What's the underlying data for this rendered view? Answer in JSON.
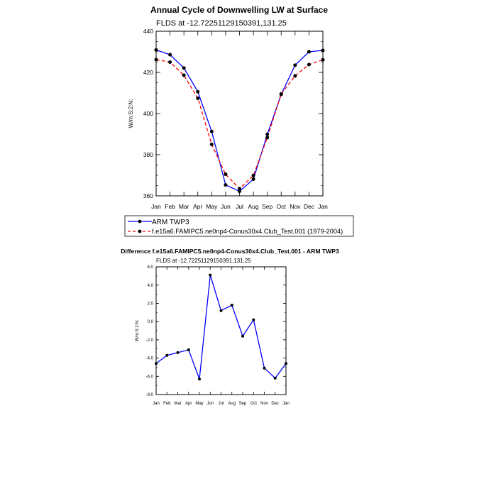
{
  "chart_data": [
    {
      "type": "line",
      "title": "Annual Cycle of Downwelling LW at Surface",
      "subtitle": "FLDS at -12.72251129150391,131.25",
      "ylabel": "W/m:S:2:N:",
      "xlabel": "",
      "categories": [
        "Jan",
        "Feb",
        "Mar",
        "Apr",
        "May",
        "Jun",
        "Jul",
        "Aug",
        "Sep",
        "Oct",
        "Nov",
        "Dec",
        "Jan"
      ],
      "ylim": [
        360,
        440
      ],
      "yticks": [
        "360",
        "380",
        "400",
        "420",
        "440"
      ],
      "grid": false,
      "legend_placement": "bottom",
      "series": [
        {
          "name": "ARM TWP3",
          "color": "#0000ff",
          "style": "solid",
          "values": [
            430.9,
            428.6,
            422.1,
            410.6,
            391.3,
            365.3,
            362.2,
            368.1,
            389.9,
            409.3,
            423.5,
            430.0,
            430.7
          ]
        },
        {
          "name": "f.e15a6.FAMIPC5.ne0np4-Conus30x4.Club_Test.001 (1979-2004)",
          "color": "#ff0000",
          "style": "dashed",
          "values": [
            426.2,
            425.0,
            418.6,
            407.4,
            385.0,
            370.5,
            363.5,
            369.9,
            388.3,
            409.5,
            418.3,
            423.8,
            426.1
          ]
        }
      ]
    },
    {
      "type": "line",
      "title": "Difference f.e15a6.FAMIPC5.ne0np4-Conus30x4.Club_Test.001 - ARM TWP3",
      "subtitle": "FLDS at -12.72251129150391,131.25",
      "ylabel": "W/m:S:2:N:",
      "xlabel": "",
      "categories": [
        "Jan",
        "Feb",
        "Mar",
        "Apr",
        "May",
        "Jun",
        "Jul",
        "Aug",
        "Sep",
        "Oct",
        "Nov",
        "Dec",
        "Jan"
      ],
      "ylim": [
        -8.0,
        6.0
      ],
      "yticks": [
        "-8.0",
        "-6.0",
        "-4.0",
        "-2.0",
        "0.0",
        "2.0",
        "4.0",
        "6.0"
      ],
      "grid": false,
      "series": [
        {
          "color": "#0000ff",
          "style": "solid",
          "values": [
            -4.6,
            -3.7,
            -3.4,
            -3.1,
            -6.3,
            5.1,
            1.2,
            1.8,
            -1.6,
            0.2,
            -5.1,
            -6.2,
            -4.6
          ]
        }
      ]
    }
  ]
}
